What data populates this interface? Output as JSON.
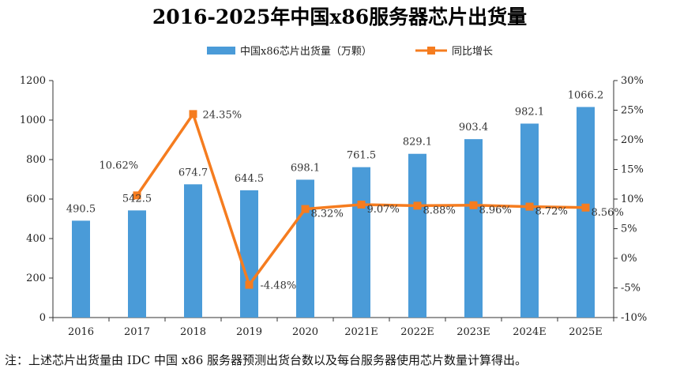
{
  "chart_data": {
    "type": "bar",
    "title": "2016-2025年中国x86服务器芯片出货量",
    "categories": [
      "2016",
      "2017",
      "2018",
      "2019",
      "2020",
      "2021E",
      "2022E",
      "2023E",
      "2024E",
      "2025E"
    ],
    "series": [
      {
        "name": "中国x86芯片出货量（万颗）",
        "type": "bar",
        "axis": "left",
        "color": "#4a9bd8",
        "values": [
          490.5,
          542.5,
          674.7,
          644.5,
          698.1,
          761.5,
          829.1,
          903.4,
          982.1,
          1066.2
        ],
        "labels": [
          "490.5",
          "542.5",
          "674.7",
          "644.5",
          "698.1",
          "761.5",
          "829.1",
          "903.4",
          "982.1",
          "1066.2"
        ]
      },
      {
        "name": "同比增长",
        "type": "line",
        "axis": "right",
        "color": "#f57c1f",
        "values": [
          null,
          10.62,
          24.35,
          -4.48,
          8.32,
          9.07,
          8.88,
          8.96,
          8.72,
          8.56
        ],
        "labels": [
          "",
          "10.62%",
          "24.35%",
          "-4.48%",
          "8.32%",
          "9.07%",
          "8.88%",
          "8.96%",
          "8.72%",
          "8.56%"
        ]
      }
    ],
    "y_left": {
      "ylim": [
        0,
        1200
      ],
      "ticks": [
        "0",
        "200",
        "400",
        "600",
        "800",
        "1000",
        "1200"
      ]
    },
    "y_right": {
      "ylim": [
        -10,
        30
      ],
      "ticks": [
        "-10%",
        "-5%",
        "0%",
        "5%",
        "10%",
        "15%",
        "20%",
        "25%",
        "30%"
      ]
    },
    "grid": false,
    "legend_position": "top-center"
  },
  "note": "注：上述芯片出货量由 IDC 中国 x86 服务器预测出货台数以及每台服务器使用芯片数量计算得出。"
}
